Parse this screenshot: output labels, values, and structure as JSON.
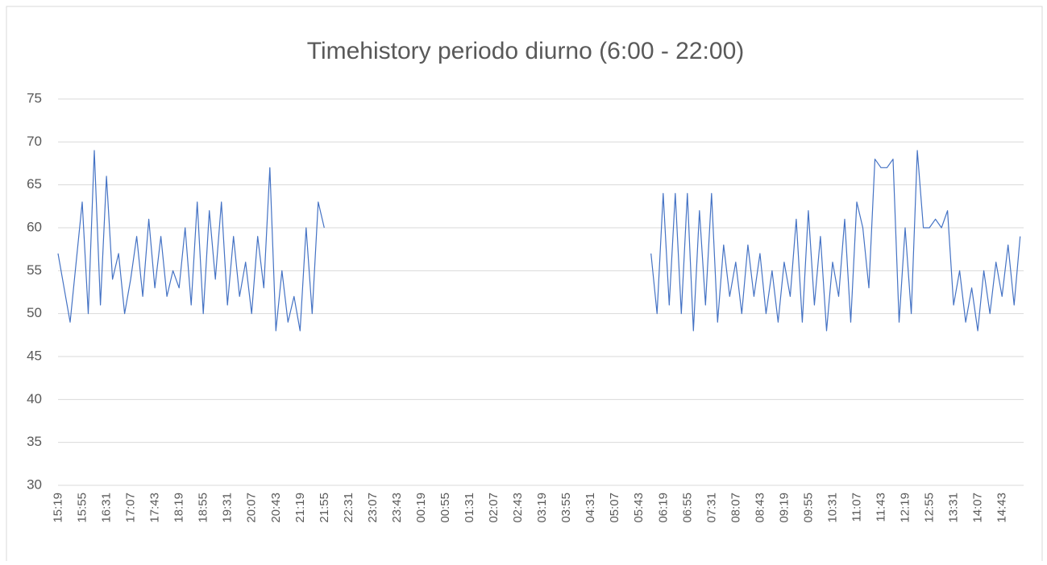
{
  "chart_data": {
    "type": "line",
    "title": "Timehistory periodo diurno (6:00 - 22:00)",
    "categories": [
      "15:19",
      null,
      null,
      null,
      "15:55",
      null,
      null,
      null,
      "16:31",
      null,
      null,
      null,
      "17:07",
      null,
      null,
      null,
      "17:43",
      null,
      null,
      null,
      "18:19",
      null,
      null,
      null,
      "18:55",
      null,
      null,
      null,
      "19:31",
      null,
      null,
      null,
      "20:07",
      null,
      null,
      null,
      "20:43",
      null,
      null,
      null,
      "21:19",
      null,
      null,
      null,
      "21:55",
      null,
      null,
      null,
      "22:31",
      null,
      null,
      null,
      "23:07",
      null,
      null,
      null,
      "23:43",
      null,
      null,
      null,
      "00:19",
      null,
      null,
      null,
      "00:55",
      null,
      null,
      null,
      "01:31",
      null,
      null,
      null,
      "02:07",
      null,
      null,
      null,
      "02:43",
      null,
      null,
      null,
      "03:19",
      null,
      null,
      null,
      "03:55",
      null,
      null,
      null,
      "04:31",
      null,
      null,
      null,
      "05:07",
      null,
      null,
      null,
      "05:43",
      null,
      null,
      null,
      "06:19",
      null,
      null,
      null,
      "06:55",
      null,
      null,
      null,
      "07:31",
      null,
      null,
      null,
      "08:07",
      null,
      null,
      null,
      "08:43",
      null,
      null,
      null,
      "09:19",
      null,
      null,
      null,
      "09:55",
      null,
      null,
      null,
      "10:31",
      null,
      null,
      null,
      "11:07",
      null,
      null,
      null,
      "11:43",
      null,
      null,
      null,
      "12:19",
      null,
      null,
      null,
      "12:55",
      null,
      null,
      null,
      "13:31",
      null,
      null,
      null,
      "14:07",
      null,
      null,
      null,
      "14:43",
      null,
      null,
      null
    ],
    "series": [
      {
        "color": "#4472c4",
        "values": [
          57,
          53,
          49,
          56,
          63,
          50,
          69,
          51,
          66,
          54,
          57,
          50,
          54,
          59,
          52,
          61,
          53,
          59,
          52,
          55,
          53,
          60,
          51,
          63,
          50,
          62,
          54,
          63,
          51,
          59,
          52,
          56,
          50,
          59,
          53,
          67,
          48,
          55,
          49,
          52,
          48,
          60,
          50,
          63,
          60,
          null,
          null,
          null,
          null,
          null,
          null,
          null,
          null,
          null,
          null,
          null,
          null,
          null,
          null,
          null,
          null,
          null,
          null,
          null,
          null,
          null,
          null,
          null,
          null,
          null,
          null,
          null,
          null,
          null,
          null,
          null,
          null,
          null,
          null,
          null,
          null,
          null,
          null,
          null,
          null,
          null,
          null,
          null,
          null,
          null,
          null,
          null,
          null,
          null,
          null,
          null,
          null,
          null,
          57,
          50,
          64,
          51,
          64,
          50,
          64,
          48,
          62,
          51,
          64,
          49,
          58,
          52,
          56,
          50,
          58,
          52,
          57,
          50,
          55,
          49,
          56,
          52,
          61,
          49,
          62,
          51,
          59,
          48,
          56,
          52,
          61,
          49,
          63,
          60,
          53,
          68,
          67,
          67,
          68,
          49,
          60,
          50,
          69,
          60,
          60,
          61,
          60,
          62,
          51,
          55,
          49,
          53,
          48,
          55,
          50,
          56,
          52,
          58,
          51,
          59
        ]
      }
    ],
    "ylim": [
      30,
      75
    ],
    "yticks": [
      30,
      35,
      40,
      45,
      50,
      55,
      60,
      65,
      70,
      75
    ],
    "grid": true
  }
}
